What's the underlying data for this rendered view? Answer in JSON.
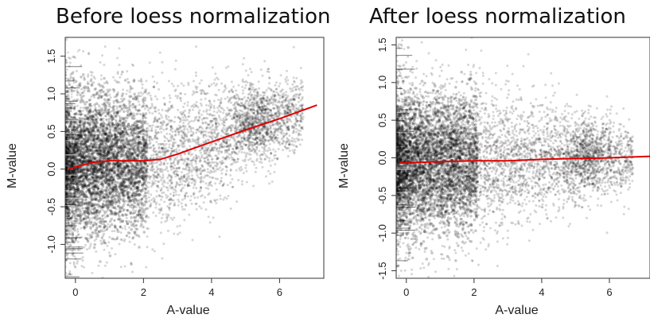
{
  "chart_data": [
    {
      "type": "scatter",
      "title": "Before loess normalization",
      "xlabel": "A-value",
      "ylabel": "M-value",
      "xlim": [
        -0.3,
        7.3
      ],
      "ylim": [
        -1.45,
        1.75
      ],
      "xticks": [
        0,
        2,
        4,
        6
      ],
      "yticks": [
        -1.0,
        -0.5,
        0.0,
        0.5,
        1.0,
        1.5
      ],
      "ytick_labels": [
        "-1.0",
        "-0.5",
        "0.0",
        "0.5",
        "1.0",
        "1.5"
      ],
      "grid": false,
      "series": [
        {
          "kind": "points",
          "color": "#000000",
          "description_of_distribution": "dense cloud centred near 0, wide spread at low A narrowing to right, secondary cluster near A=5.3, M=0.65",
          "cluster_centers": [
            {
              "x": 0.5,
              "y": 0.05,
              "spread_x": 1.2,
              "spread_y": 0.55
            },
            {
              "x": 2.5,
              "y": 0.15,
              "spread_x": 1.0,
              "spread_y": 0.38
            },
            {
              "x": 5.3,
              "y": 0.65,
              "spread_x": 0.35,
              "spread_y": 0.22
            }
          ]
        },
        {
          "kind": "line",
          "color": "#e00000",
          "x": [
            -0.2,
            0.5,
            1.0,
            1.5,
            2.0,
            2.5,
            3.0,
            4.0,
            5.0,
            6.0,
            7.1
          ],
          "y": [
            0.0,
            0.09,
            0.11,
            0.11,
            0.11,
            0.13,
            0.2,
            0.36,
            0.52,
            0.67,
            0.85
          ]
        }
      ]
    },
    {
      "type": "scatter",
      "title": "After loess normalization",
      "xlabel": "A-value",
      "ylabel": "M-value",
      "xlim": [
        -0.3,
        7.2
      ],
      "ylim": [
        -1.6,
        1.6
      ],
      "xticks": [
        0,
        2,
        4,
        6
      ],
      "yticks": [
        -1.5,
        -1.0,
        -0.5,
        0.0,
        0.5,
        1.0,
        1.5
      ],
      "ytick_labels": [
        "-1.5",
        "-1.0",
        "-0.5",
        "0.0",
        "0.5",
        "1.0",
        "1.5"
      ],
      "grid": false,
      "series": [
        {
          "kind": "points",
          "color": "#000000",
          "cluster_centers": [
            {
              "x": 0.5,
              "y": -0.05,
              "spread_x": 1.2,
              "spread_y": 0.55
            },
            {
              "x": 2.5,
              "y": -0.03,
              "spread_x": 1.0,
              "spread_y": 0.38
            },
            {
              "x": 5.3,
              "y": 0.0,
              "spread_x": 0.35,
              "spread_y": 0.22
            }
          ]
        },
        {
          "kind": "line",
          "color": "#e00000",
          "x": [
            -0.2,
            1.0,
            2.0,
            3.0,
            4.0,
            5.0,
            6.0,
            7.2
          ],
          "y": [
            -0.07,
            -0.05,
            -0.04,
            -0.04,
            -0.02,
            -0.01,
            0.0,
            0.02
          ]
        }
      ]
    }
  ]
}
